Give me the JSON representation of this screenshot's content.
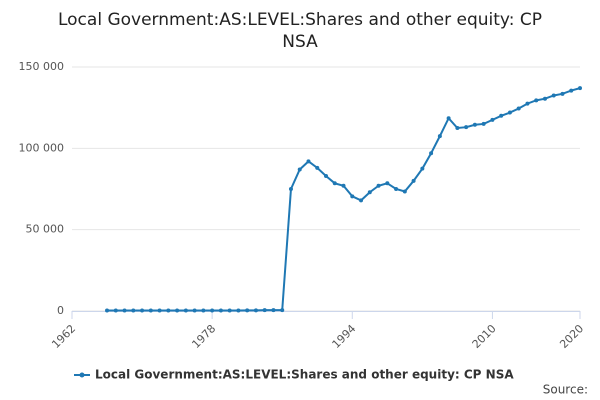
{
  "chart_data": {
    "type": "line",
    "title": "Local Government:AS:LEVEL:Shares and other equity: CP NSA",
    "source": "Source:",
    "x": [
      1966,
      1967,
      1968,
      1969,
      1970,
      1971,
      1972,
      1973,
      1974,
      1975,
      1976,
      1977,
      1978,
      1979,
      1980,
      1981,
      1982,
      1983,
      1984,
      1985,
      1986,
      1987,
      1988,
      1989,
      1990,
      1991,
      1992,
      1993,
      1994,
      1995,
      1996,
      1997,
      1998,
      1999,
      2000,
      2001,
      2002,
      2003,
      2004,
      2005,
      2006,
      2007,
      2008,
      2009,
      2010,
      2011,
      2012,
      2013,
      2014,
      2015,
      2016,
      2017,
      2018,
      2019,
      2020
    ],
    "series": [
      {
        "name": "Local Government:AS:LEVEL:Shares and other equity: CP NSA",
        "color": "#1f78b4",
        "values": [
          300,
          300,
          300,
          300,
          300,
          300,
          300,
          300,
          300,
          300,
          300,
          300,
          300,
          300,
          300,
          300,
          400,
          400,
          500,
          500,
          500,
          75000,
          87000,
          92000,
          88000,
          83000,
          78500,
          77000,
          70500,
          68000,
          73000,
          77000,
          78500,
          75000,
          73500,
          80000,
          87500,
          97000,
          107500,
          118500,
          112500,
          113000,
          114500,
          115000,
          117500,
          120000,
          122000,
          124500,
          127500,
          129500,
          130500,
          132500,
          133500,
          135500,
          137000
        ]
      }
    ],
    "xlim": [
      1962,
      2020
    ],
    "xticks": [
      1962,
      1978,
      1994,
      2010,
      2020
    ],
    "ylim": [
      0,
      150000
    ],
    "yticks": [
      {
        "value": 0,
        "label": "0"
      },
      {
        "value": 50000,
        "label": "50 000"
      },
      {
        "value": 100000,
        "label": "100 000"
      },
      {
        "value": 150000,
        "label": "150 000"
      }
    ],
    "grid": true
  }
}
